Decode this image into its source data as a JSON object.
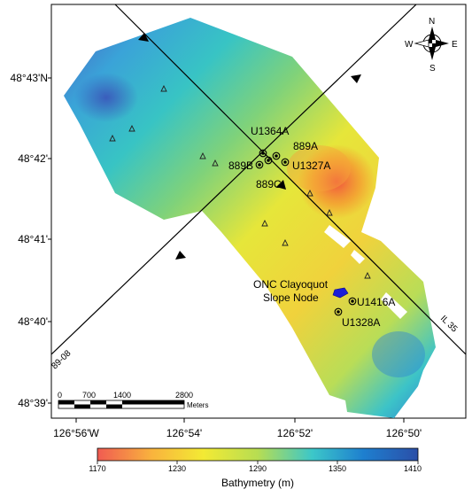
{
  "map": {
    "lat_labels": [
      "48°43'N",
      "48°42'",
      "48°41'",
      "48°40'",
      "48°39'"
    ],
    "lon_labels": [
      "126°56'W",
      "126°54'",
      "126°52'",
      "126°50'"
    ],
    "compass": {
      "n": "N",
      "s": "S",
      "e": "E",
      "w": "W"
    },
    "sites": {
      "u1364a": "U1364A",
      "s889a": "889A",
      "s889b": "889B",
      "s889c": "889C",
      "u1327a": "U1327A",
      "u1416a": "U1416A",
      "u1328a": "U1328A"
    },
    "node_label_line1": "ONC Clayoquot",
    "node_label_line2": "Slope Node",
    "line_labels": {
      "line_89_08": "89-08",
      "line_il35": "IL 35"
    },
    "scale_bar": {
      "ticks": [
        "0",
        "700",
        "1400",
        "2800"
      ],
      "unit": "Meters"
    }
  },
  "colorbar": {
    "ticks": [
      "1170",
      "1230",
      "1290",
      "1350",
      "1410"
    ],
    "label": "Bathymetry (m)",
    "colors": [
      "#f05b52",
      "#f9b33d",
      "#f3ea34",
      "#b7dd52",
      "#3cc7c9",
      "#1e7fcf",
      "#2b4fa8"
    ]
  }
}
